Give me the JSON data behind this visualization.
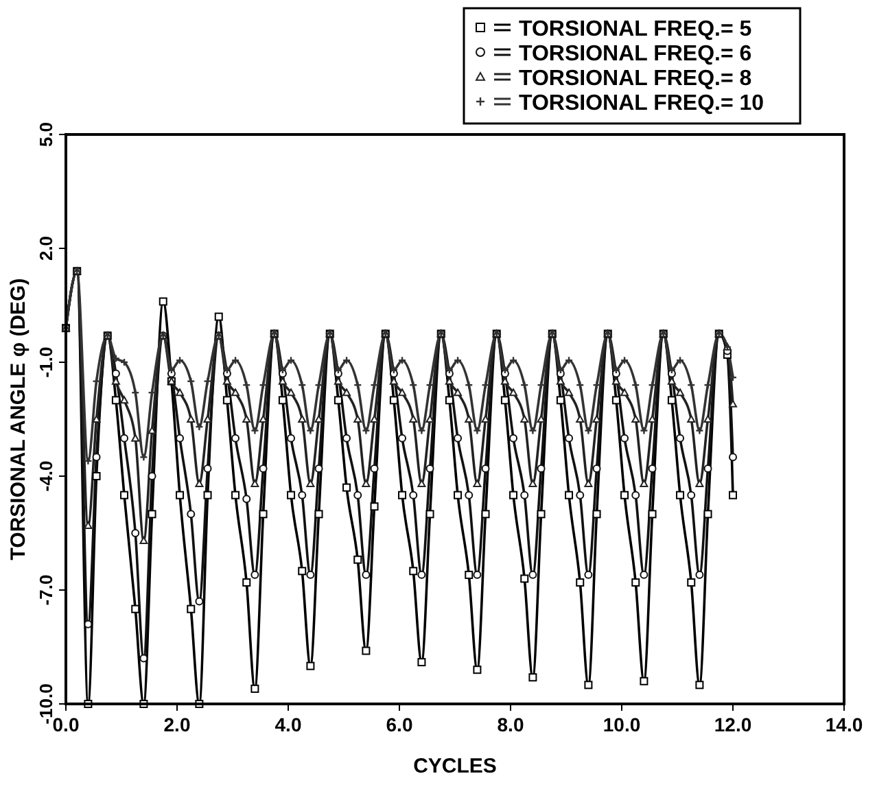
{
  "chart_data": {
    "type": "line",
    "xlabel": "CYCLES",
    "ylabel": "TORSIONAL ANGLE φ (DEG)",
    "xlim": [
      0,
      14
    ],
    "xticks": [
      {
        "value": 0,
        "label": "0.0"
      },
      {
        "value": 2,
        "label": "2.0"
      },
      {
        "value": 4,
        "label": "4.0"
      },
      {
        "value": 6,
        "label": "6.0"
      },
      {
        "value": 8,
        "label": "8.0"
      },
      {
        "value": 10,
        "label": "10.0"
      },
      {
        "value": 12,
        "label": "12.0"
      },
      {
        "value": 14,
        "label": "14.0"
      }
    ],
    "ylim": [
      -10,
      5
    ],
    "yticks": [
      {
        "value": -10,
        "label": "-10.0"
      },
      {
        "value": -7,
        "label": "-7.0"
      },
      {
        "value": -4,
        "label": "-4.0"
      },
      {
        "value": -1,
        "label": "-1.0"
      },
      {
        "value": 2,
        "label": "2.0"
      },
      {
        "value": 5,
        "label": "5.0"
      }
    ],
    "grid": false,
    "legend": "top right",
    "line_style": "solid",
    "x": [
      0,
      0.2,
      0.4,
      0.55,
      0.75,
      0.9,
      1.05,
      1.25,
      1.4,
      1.55,
      1.75,
      1.9,
      2.05,
      2.25,
      2.4,
      2.55,
      2.75,
      2.9,
      3.05,
      3.25,
      3.4,
      3.55,
      3.75,
      3.9,
      4.05,
      4.25,
      4.4,
      4.55,
      4.75,
      4.9,
      5.05,
      5.25,
      5.4,
      5.55,
      5.75,
      5.9,
      6.05,
      6.25,
      6.4,
      6.55,
      6.75,
      6.9,
      7.05,
      7.25,
      7.4,
      7.55,
      7.75,
      7.9,
      8.05,
      8.25,
      8.4,
      8.55,
      8.75,
      8.9,
      9.05,
      9.25,
      9.4,
      9.55,
      9.75,
      9.9,
      10.05,
      10.25,
      10.4,
      10.55,
      10.75,
      10.9,
      11.05,
      11.25,
      11.4,
      11.55,
      11.75,
      11.9,
      12.0
    ],
    "series": [
      {
        "name": "TORSIONAL FREQ.= 5",
        "color": "#000000",
        "marker": "square",
        "values": [
          -0.1,
          1.4,
          -10,
          -4,
          -0.3,
          -2,
          -4.5,
          -7.5,
          -10,
          -5,
          0.6,
          -1.5,
          -4.5,
          -7.5,
          -10,
          -4.5,
          0.2,
          -2,
          -4.5,
          -6.8,
          -9.6,
          -5,
          -0.25,
          -2,
          -4.5,
          -6.5,
          -9,
          -5,
          -0.25,
          -2,
          -4.3,
          -6.2,
          -8.6,
          -4.8,
          -0.25,
          -2,
          -4.5,
          -6.5,
          -8.9,
          -5,
          -0.25,
          -2,
          -4.5,
          -6.6,
          -9.1,
          -5,
          -0.25,
          -2,
          -4.5,
          -6.7,
          -9.3,
          -5,
          -0.25,
          -2,
          -4.5,
          -6.8,
          -9.5,
          -5,
          -0.25,
          -2,
          -4.5,
          -6.8,
          -9.4,
          -5,
          -0.25,
          -2,
          -4.5,
          -6.8,
          -9.5,
          -5,
          -0.25,
          -0.8,
          -4.5
        ]
      },
      {
        "name": "TORSIONAL FREQ.= 6",
        "color": "#111111",
        "marker": "circle",
        "values": [
          -0.1,
          1.4,
          -7.9,
          -3.5,
          -0.3,
          -1.3,
          -3,
          -5.5,
          -8.8,
          -4,
          -0.3,
          -1.3,
          -3,
          -5,
          -7.3,
          -3.8,
          -0.3,
          -1.3,
          -3,
          -4.6,
          -6.6,
          -3.8,
          -0.25,
          -1.3,
          -3,
          -4.5,
          -6.6,
          -3.8,
          -0.25,
          -1.3,
          -3,
          -4.5,
          -6.6,
          -3.8,
          -0.25,
          -1.3,
          -3,
          -4.5,
          -6.6,
          -3.8,
          -0.25,
          -1.3,
          -3,
          -4.5,
          -6.6,
          -3.8,
          -0.25,
          -1.3,
          -3,
          -4.5,
          -6.6,
          -3.8,
          -0.25,
          -1.3,
          -3,
          -4.5,
          -6.6,
          -3.8,
          -0.25,
          -1.3,
          -3,
          -4.5,
          -6.6,
          -3.8,
          -0.25,
          -1.3,
          -3,
          -4.5,
          -6.6,
          -3.8,
          -0.25,
          -0.7,
          -3.5
        ]
      },
      {
        "name": "TORSIONAL FREQ.= 8",
        "color": "#222222",
        "marker": "triangle",
        "values": [
          -0.1,
          1.4,
          -5.3,
          -2.5,
          -0.3,
          -1.5,
          -2,
          -3,
          -5.7,
          -2.8,
          -0.3,
          -1.5,
          -1.8,
          -2.5,
          -4.2,
          -2.5,
          -0.3,
          -1.5,
          -1.8,
          -2.5,
          -4.2,
          -2.5,
          -0.25,
          -1.5,
          -1.8,
          -2.5,
          -4.2,
          -2.5,
          -0.25,
          -1.5,
          -1.8,
          -2.5,
          -4.2,
          -2.5,
          -0.25,
          -1.5,
          -1.8,
          -2.5,
          -4.2,
          -2.5,
          -0.25,
          -1.5,
          -1.8,
          -2.5,
          -4.2,
          -2.5,
          -0.25,
          -1.5,
          -1.8,
          -2.5,
          -4.2,
          -2.5,
          -0.25,
          -1.5,
          -1.8,
          -2.5,
          -4.2,
          -2.5,
          -0.25,
          -1.5,
          -1.8,
          -2.5,
          -4.2,
          -2.5,
          -0.25,
          -1.5,
          -1.8,
          -2.5,
          -4.2,
          -2.5,
          -0.25,
          -0.6,
          -2.1
        ]
      },
      {
        "name": "TORSIONAL FREQ.= 10",
        "color": "#333333",
        "marker": "cross",
        "values": [
          -0.1,
          1.4,
          -3.6,
          -1.5,
          -0.3,
          -0.9,
          -1,
          -1.8,
          -3.5,
          -1.8,
          -0.3,
          -1.2,
          -0.95,
          -1.5,
          -2.7,
          -1.5,
          -0.3,
          -1.2,
          -0.95,
          -1.6,
          -2.8,
          -1.6,
          -0.25,
          -1.2,
          -0.95,
          -1.6,
          -2.8,
          -1.6,
          -0.25,
          -1.2,
          -0.95,
          -1.6,
          -2.8,
          -1.6,
          -0.25,
          -1.2,
          -0.95,
          -1.6,
          -2.8,
          -1.6,
          -0.25,
          -1.2,
          -0.95,
          -1.6,
          -2.8,
          -1.6,
          -0.25,
          -1.2,
          -0.95,
          -1.6,
          -2.8,
          -1.6,
          -0.25,
          -1.2,
          -0.95,
          -1.6,
          -2.8,
          -1.6,
          -0.25,
          -1.2,
          -0.95,
          -1.6,
          -2.8,
          -1.6,
          -0.25,
          -1.2,
          -0.95,
          -1.6,
          -2.8,
          -1.6,
          -0.25,
          -0.6,
          -1.4
        ]
      }
    ]
  }
}
